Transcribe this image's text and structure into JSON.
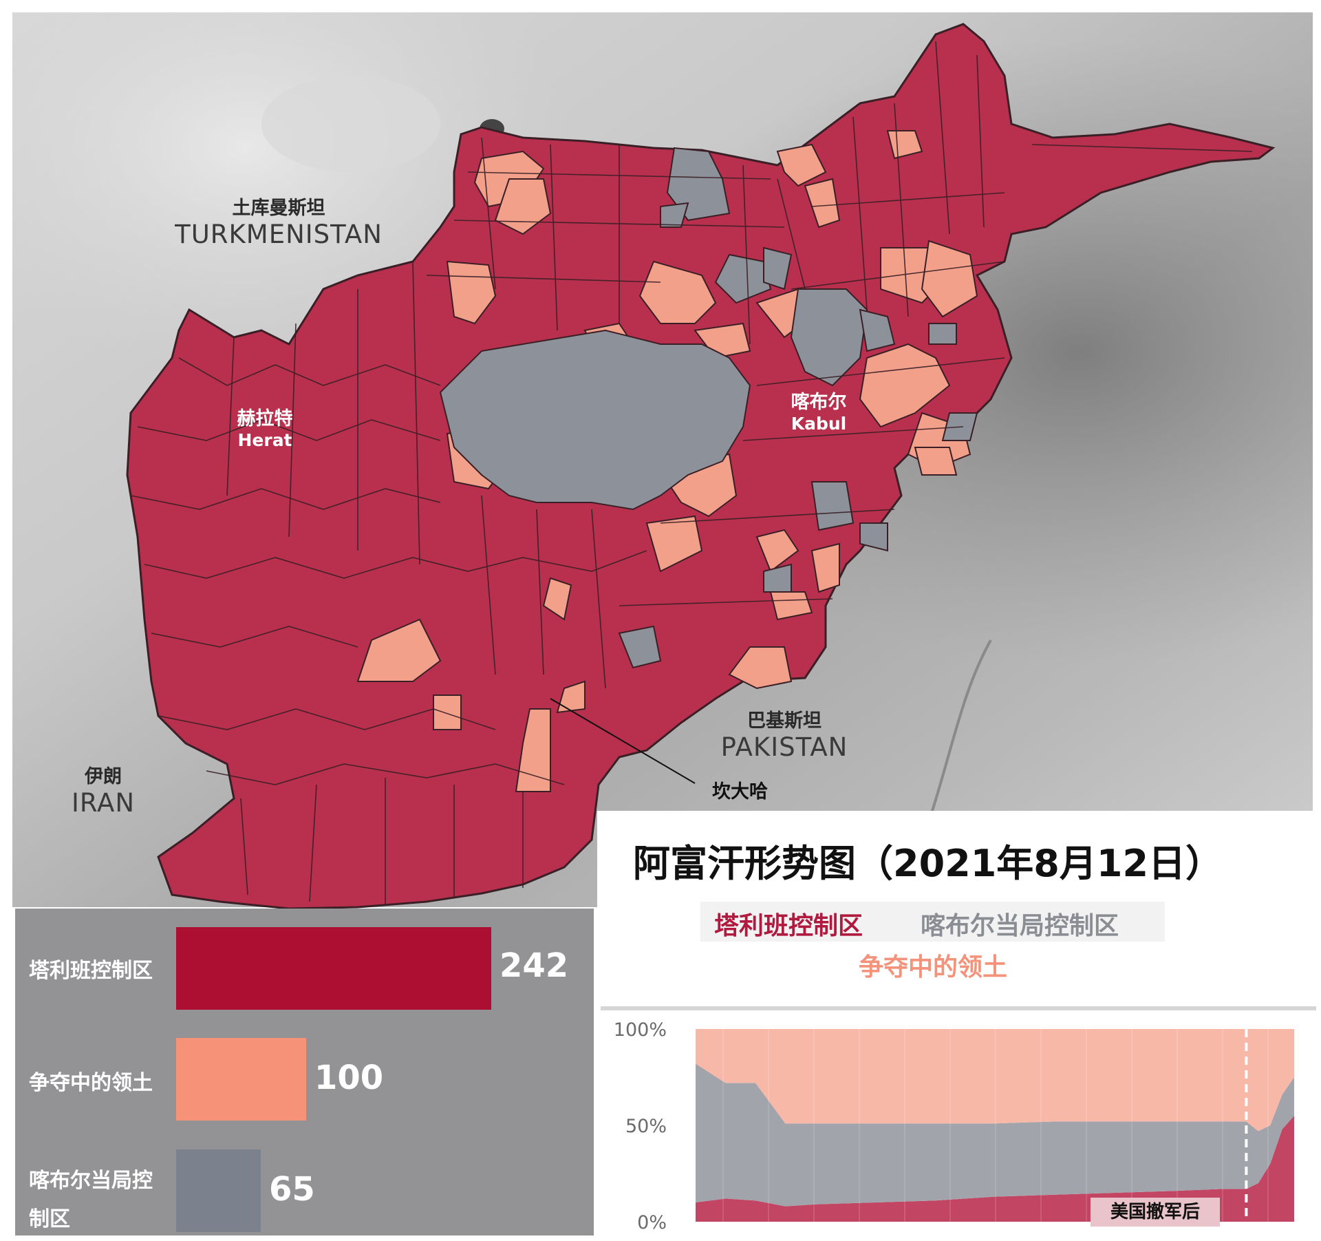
{
  "title": "阿富汗形势图（2021年8月12日）",
  "legend": [
    {
      "label": "塔利班控制区",
      "color": "#b01a3e"
    },
    {
      "label": "喀布尔当局控制区",
      "color": "#8a8d94"
    },
    {
      "label": "争夺中的领土",
      "color": "#f4937a"
    }
  ],
  "map": {
    "countries": {
      "turkmenistan_cn": "土库曼斯坦",
      "turkmenistan_en": "TURKMENISTAN",
      "pakistan_cn": "巴基斯坦",
      "pakistan_en": "PAKISTAN",
      "iran_cn": "伊朗",
      "iran_en": "IRAN"
    },
    "cities": {
      "herat_cn": "赫拉特",
      "herat_en": "Herat",
      "kabul_cn": "喀布尔",
      "kabul_en": "Kabul",
      "kandahar_cn": "坎大哈"
    },
    "colors": {
      "taliban": "#b8304e",
      "contested": "#f2a08a",
      "government": "#8d9199",
      "border": "#3a1f26"
    }
  },
  "district_counts": [
    {
      "label": "塔利班控制区",
      "value": 242,
      "color": "#ad0f33"
    },
    {
      "label": "争夺中的领土",
      "value": 100,
      "color": "#f59277"
    },
    {
      "label": "喀布尔当局控制区",
      "value": 65,
      "color": "#7b818d"
    }
  ],
  "chart_data": {
    "type": "area",
    "stacked_percent": true,
    "ylim": [
      0,
      100
    ],
    "yticks": [
      "100%",
      "50%",
      "0%"
    ],
    "series": [
      {
        "name": "塔利班控制区",
        "color": "#c34564",
        "x": [
          0,
          5,
          10,
          15,
          20,
          30,
          40,
          50,
          60,
          70,
          80,
          88,
          92,
          94,
          96,
          98,
          100
        ],
        "values": [
          10,
          12,
          11,
          8,
          9,
          10,
          11,
          13,
          14,
          15,
          16,
          17,
          17,
          20,
          30,
          48,
          55
        ]
      },
      {
        "name": "喀布尔当局控制区",
        "color": "#a1a4ab",
        "x": [
          0,
          5,
          10,
          15,
          20,
          30,
          40,
          50,
          60,
          70,
          80,
          88,
          92,
          94,
          96,
          98,
          100
        ],
        "values": [
          72,
          60,
          61,
          43,
          42,
          41,
          40,
          38,
          38,
          37,
          36,
          35,
          35,
          27,
          20,
          18,
          20
        ]
      },
      {
        "name": "争夺中的领土",
        "color": "#f7b8a8",
        "x": [
          0,
          5,
          10,
          15,
          20,
          30,
          40,
          50,
          60,
          70,
          80,
          88,
          92,
          94,
          96,
          98,
          100
        ],
        "values": [
          18,
          28,
          28,
          49,
          49,
          49,
          49,
          49,
          48,
          48,
          48,
          48,
          48,
          53,
          50,
          34,
          25
        ]
      }
    ],
    "annotation": "美国撤军后",
    "annotation_x": 92
  }
}
